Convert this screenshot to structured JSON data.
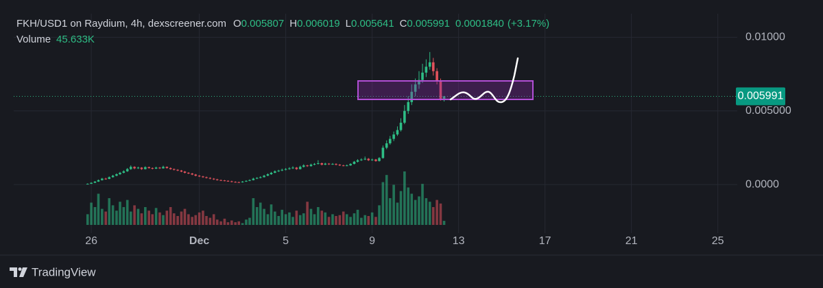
{
  "chart_data": {
    "type": "candlestick",
    "title": "FKH/USD1 on Raydium, 4h, dexscreener.com",
    "ohlc_labels": [
      "O",
      "H",
      "L",
      "C"
    ],
    "change": "0.0001840",
    "change_pct": "(+3.17%)",
    "volume_name": "Volume",
    "volume_last_label": "45.633K",
    "up_color": "#2ebd85",
    "down_color": "#e0525c",
    "grid": true,
    "xlim": [
      -3.59,
      29.9
    ],
    "xticks": [
      {
        "value": 0,
        "label": "26"
      },
      {
        "value": 5,
        "label": "Dec"
      },
      {
        "value": 9,
        "label": "5"
      },
      {
        "value": 13,
        "label": "9"
      },
      {
        "value": 17,
        "label": "13"
      },
      {
        "value": 21,
        "label": "17"
      },
      {
        "value": 25,
        "label": "21"
      },
      {
        "value": 29,
        "label": "25"
      }
    ],
    "ylim": [
      -0.0033,
      0.0116
    ],
    "yticks": [
      {
        "value": 0.01,
        "label": "0.01000"
      },
      {
        "value": 0.005,
        "label": "0.005000"
      },
      {
        "value": 0,
        "label": "0.0000"
      }
    ],
    "x": [
      -0.17,
      0,
      0.17,
      0.33,
      0.5,
      0.67,
      0.83,
      1,
      1.17,
      1.33,
      1.5,
      1.67,
      1.83,
      2,
      2.17,
      2.33,
      2.5,
      2.67,
      2.83,
      3,
      3.17,
      3.33,
      3.5,
      3.67,
      3.83,
      4,
      4.17,
      4.33,
      4.5,
      4.67,
      4.83,
      5,
      5.17,
      5.33,
      5.5,
      5.67,
      5.83,
      6,
      6.17,
      6.33,
      6.5,
      6.67,
      6.83,
      7,
      7.17,
      7.33,
      7.5,
      7.67,
      7.83,
      8,
      8.17,
      8.33,
      8.5,
      8.67,
      8.83,
      9,
      9.17,
      9.33,
      9.5,
      9.67,
      9.83,
      10,
      10.17,
      10.33,
      10.5,
      10.67,
      10.83,
      11,
      11.17,
      11.33,
      11.5,
      11.67,
      11.83,
      12,
      12.17,
      12.33,
      12.5,
      12.67,
      12.83,
      13,
      13.17,
      13.33,
      13.5,
      13.67,
      13.83,
      14,
      14.17,
      14.33,
      14.5,
      14.67,
      14.83,
      15,
      15.17,
      15.33,
      15.5,
      15.67,
      15.83,
      16,
      16.17,
      16.33
    ],
    "candles": [
      [
        3e-05,
        8e-05,
        2e-05,
        5e-05
      ],
      [
        5e-05,
        0.00015,
        4e-05,
        0.00012
      ],
      [
        0.00012,
        0.00024,
        0.0001,
        0.0002
      ],
      [
        0.0002,
        0.00034,
        0.00018,
        0.0003
      ],
      [
        0.0003,
        0.00045,
        0.00027,
        0.0004
      ],
      [
        0.0004,
        0.00046,
        0.00033,
        0.00038
      ],
      [
        0.00038,
        0.00055,
        0.00036,
        0.0005
      ],
      [
        0.0005,
        0.00066,
        0.00047,
        0.0006
      ],
      [
        0.0006,
        0.00076,
        0.00056,
        0.0007
      ],
      [
        0.0007,
        0.00086,
        0.00065,
        0.0008
      ],
      [
        0.0008,
        0.00097,
        0.00076,
        0.0009
      ],
      [
        0.0009,
        0.00112,
        0.00086,
        0.00105
      ],
      [
        0.00105,
        0.0013,
        0.001,
        0.0012
      ],
      [
        0.0012,
        0.00124,
        0.00104,
        0.0011
      ],
      [
        0.0011,
        0.00121,
        0.00106,
        0.00115
      ],
      [
        0.00115,
        0.00118,
        0.001,
        0.00105
      ],
      [
        0.00105,
        0.00124,
        0.00102,
        0.00118
      ],
      [
        0.00118,
        0.00122,
        0.00108,
        0.00112
      ],
      [
        0.00112,
        0.00116,
        0.00103,
        0.00108
      ],
      [
        0.00108,
        0.00121,
        0.00105,
        0.00115
      ],
      [
        0.00115,
        0.00119,
        0.00106,
        0.0011
      ],
      [
        0.0011,
        0.00128,
        0.00108,
        0.0012
      ],
      [
        0.0012,
        0.00123,
        0.00108,
        0.00112
      ],
      [
        0.00112,
        0.00116,
        0.00101,
        0.00105
      ],
      [
        0.00105,
        0.00109,
        0.00096,
        0.001
      ],
      [
        0.001,
        0.00104,
        0.00091,
        0.00095
      ],
      [
        0.00095,
        0.00099,
        0.00084,
        0.00088
      ],
      [
        0.00088,
        0.00092,
        0.00076,
        0.0008
      ],
      [
        0.0008,
        0.00084,
        0.00071,
        0.00075
      ],
      [
        0.00075,
        0.00079,
        0.00064,
        0.00068
      ],
      [
        0.00068,
        0.00072,
        0.00056,
        0.0006
      ],
      [
        0.0006,
        0.00064,
        0.00051,
        0.00055
      ],
      [
        0.00055,
        0.00059,
        0.00046,
        0.0005
      ],
      [
        0.0005,
        0.00054,
        0.00041,
        0.00045
      ],
      [
        0.00045,
        0.00049,
        0.00036,
        0.0004
      ],
      [
        0.0004,
        0.00044,
        0.00031,
        0.00035
      ],
      [
        0.00035,
        0.00039,
        0.00027,
        0.0003
      ],
      [
        0.0003,
        0.00034,
        0.00025,
        0.00028
      ],
      [
        0.00028,
        0.00031,
        0.00022,
        0.00025
      ],
      [
        0.00025,
        0.00029,
        0.00019,
        0.00022
      ],
      [
        0.00022,
        0.00026,
        0.00015,
        0.00018
      ],
      [
        0.00018,
        0.00022,
        0.00013,
        0.00016
      ],
      [
        0.00016,
        0.0002,
        0.00012,
        0.00015
      ],
      [
        0.00015,
        0.00024,
        0.00013,
        0.0002
      ],
      [
        0.0002,
        0.00029,
        0.00018,
        0.00025
      ],
      [
        0.00025,
        0.00035,
        0.00023,
        0.0003
      ],
      [
        0.0003,
        0.00046,
        0.00028,
        0.0004
      ],
      [
        0.0004,
        0.0005,
        0.00037,
        0.00045
      ],
      [
        0.00045,
        0.00056,
        0.00042,
        0.0005
      ],
      [
        0.0005,
        0.00066,
        0.00048,
        0.0006
      ],
      [
        0.0006,
        0.00076,
        0.00057,
        0.0007
      ],
      [
        0.0007,
        0.00086,
        0.00066,
        0.0008
      ],
      [
        0.0008,
        0.00096,
        0.00077,
        0.0009
      ],
      [
        0.0009,
        0.001,
        0.00085,
        0.00095
      ],
      [
        0.00095,
        0.00108,
        0.00091,
        0.001
      ],
      [
        0.001,
        0.00112,
        0.00096,
        0.00105
      ],
      [
        0.00105,
        0.00118,
        0.00101,
        0.0011
      ],
      [
        0.0011,
        0.00124,
        0.00106,
        0.00115
      ],
      [
        0.00115,
        0.00119,
        0.001,
        0.00105
      ],
      [
        0.00105,
        0.00128,
        0.00102,
        0.0012
      ],
      [
        0.0012,
        0.00138,
        0.00116,
        0.0013
      ],
      [
        0.0013,
        0.00134,
        0.0012,
        0.00125
      ],
      [
        0.00125,
        0.00142,
        0.00122,
        0.00135
      ],
      [
        0.00135,
        0.00146,
        0.00131,
        0.0014
      ],
      [
        0.0014,
        0.00165,
        0.00136,
        0.00145
      ],
      [
        0.00145,
        0.00149,
        0.0013,
        0.00135
      ],
      [
        0.00135,
        0.00148,
        0.00132,
        0.00142
      ],
      [
        0.00142,
        0.00146,
        0.00133,
        0.00138
      ],
      [
        0.00138,
        0.00146,
        0.00134,
        0.0014
      ],
      [
        0.0014,
        0.00144,
        0.0013,
        0.00135
      ],
      [
        0.00135,
        0.00139,
        0.00126,
        0.0013
      ],
      [
        0.0013,
        0.00134,
        0.00124,
        0.00128
      ],
      [
        0.00128,
        0.00136,
        0.00125,
        0.0013
      ],
      [
        0.0013,
        0.00145,
        0.00127,
        0.0014
      ],
      [
        0.0014,
        0.0016,
        0.00137,
        0.00155
      ],
      [
        0.00155,
        0.00172,
        0.0015,
        0.00165
      ],
      [
        0.00165,
        0.00178,
        0.0016,
        0.0017
      ],
      [
        0.0017,
        0.0019,
        0.00166,
        0.00175
      ],
      [
        0.00175,
        0.0018,
        0.0016,
        0.00165
      ],
      [
        0.00165,
        0.00176,
        0.00161,
        0.0017
      ],
      [
        0.0017,
        0.00174,
        0.00155,
        0.0016
      ],
      [
        0.0016,
        0.00186,
        0.00156,
        0.0018
      ],
      [
        0.0018,
        0.00265,
        0.00176,
        0.0025
      ],
      [
        0.0025,
        0.003,
        0.0024,
        0.0028
      ],
      [
        0.0028,
        0.0033,
        0.0027,
        0.0031
      ],
      [
        0.0031,
        0.0036,
        0.00295,
        0.0034
      ],
      [
        0.0034,
        0.00395,
        0.0033,
        0.0037
      ],
      [
        0.0037,
        0.0045,
        0.0036,
        0.0042
      ],
      [
        0.0042,
        0.0054,
        0.0041,
        0.005
      ],
      [
        0.005,
        0.006,
        0.0048,
        0.0056
      ],
      [
        0.0056,
        0.0068,
        0.0054,
        0.0063
      ],
      [
        0.0063,
        0.0072,
        0.006,
        0.0068
      ],
      [
        0.0068,
        0.0077,
        0.0065,
        0.0071
      ],
      [
        0.0071,
        0.0082,
        0.0069,
        0.0076
      ],
      [
        0.0076,
        0.0085,
        0.0073,
        0.008
      ],
      [
        0.008,
        0.009,
        0.0078,
        0.0083
      ],
      [
        0.0083,
        0.0086,
        0.0074,
        0.0077
      ],
      [
        0.0077,
        0.0079,
        0.0068,
        0.007
      ],
      [
        0.007,
        0.0072,
        0.0057,
        0.005807
      ],
      [
        0.005807,
        0.006019,
        0.005641,
        0.005991
      ]
    ],
    "volume": [
      120000,
      250000,
      200000,
      350000,
      180000,
      150000,
      300000,
      220000,
      160000,
      260000,
      200000,
      280000,
      150000,
      220000,
      180000,
      130000,
      200000,
      160000,
      120000,
      190000,
      140000,
      110000,
      160000,
      200000,
      130000,
      100000,
      150000,
      180000,
      120000,
      90000,
      110000,
      140000,
      160000,
      100000,
      80000,
      120000,
      60000,
      40000,
      70000,
      30000,
      50000,
      30000,
      40000,
      20000,
      60000,
      80000,
      300000,
      200000,
      250000,
      180000,
      120000,
      230000,
      150000,
      100000,
      170000,
      120000,
      140000,
      90000,
      160000,
      110000,
      130000,
      260000,
      180000,
      120000,
      200000,
      160000,
      140000,
      90000,
      120000,
      100000,
      110000,
      150000,
      120000,
      90000,
      130000,
      170000,
      80000,
      110000,
      100000,
      140000,
      90000,
      220000,
      480000,
      560000,
      300000,
      450000,
      250000,
      380000,
      600000,
      420000,
      350000,
      280000,
      320000,
      460000,
      300000,
      260000,
      200000,
      280000,
      240000,
      45633
    ]
  },
  "brand": "TradingView"
}
